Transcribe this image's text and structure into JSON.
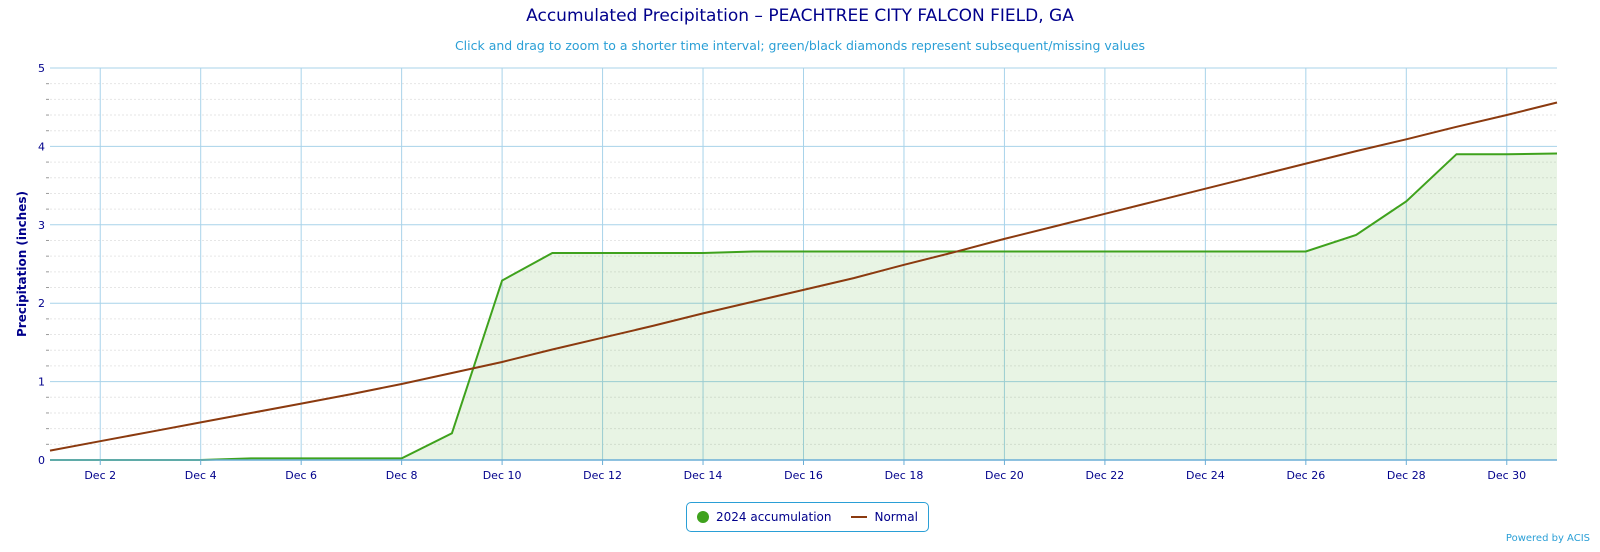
{
  "title": "Accumulated Precipitation – PEACHTREE CITY FALCON FIELD, GA",
  "subtitle": "Click and drag to zoom to a shorter time interval; green/black diamonds represent subsequent/missing values",
  "credit": "Powered by ACIS",
  "colors": {
    "accumulation": "#3fa21d",
    "normal": "#8b3a0f",
    "title": "#00008b",
    "accent": "#2a9fd6"
  },
  "chart_data": {
    "type": "line",
    "ylabel": "Precipitation (inches)",
    "ylim": [
      0,
      5
    ],
    "yticks": [
      0,
      1,
      2,
      3,
      4,
      5
    ],
    "xlim": [
      1,
      31
    ],
    "xticks": [
      {
        "day": 2,
        "label": "Dec 2"
      },
      {
        "day": 4,
        "label": "Dec 4"
      },
      {
        "day": 6,
        "label": "Dec 6"
      },
      {
        "day": 8,
        "label": "Dec 8"
      },
      {
        "day": 10,
        "label": "Dec 10"
      },
      {
        "day": 12,
        "label": "Dec 12"
      },
      {
        "day": 14,
        "label": "Dec 14"
      },
      {
        "day": 16,
        "label": "Dec 16"
      },
      {
        "day": 18,
        "label": "Dec 18"
      },
      {
        "day": 20,
        "label": "Dec 20"
      },
      {
        "day": 22,
        "label": "Dec 22"
      },
      {
        "day": 24,
        "label": "Dec 24"
      },
      {
        "day": 26,
        "label": "Dec 26"
      },
      {
        "day": 28,
        "label": "Dec 28"
      },
      {
        "day": 30,
        "label": "Dec 30"
      }
    ],
    "x": [
      1,
      2,
      3,
      4,
      5,
      6,
      7,
      8,
      9,
      10,
      11,
      12,
      13,
      14,
      15,
      16,
      17,
      18,
      19,
      20,
      21,
      22,
      23,
      24,
      25,
      26,
      27,
      28,
      29,
      30,
      31
    ],
    "series": [
      {
        "name": "2024 accumulation",
        "style": "area",
        "values": [
          0,
          0,
          0,
          0,
          0.02,
          0.02,
          0.02,
          0.02,
          0.34,
          2.29,
          2.64,
          2.64,
          2.64,
          2.64,
          2.66,
          2.66,
          2.66,
          2.66,
          2.66,
          2.66,
          2.66,
          2.66,
          2.66,
          2.66,
          2.66,
          2.66,
          2.87,
          3.3,
          3.9,
          3.9,
          3.91
        ]
      },
      {
        "name": "Normal",
        "style": "line",
        "values": [
          0.12,
          0.24,
          0.36,
          0.48,
          0.6,
          0.72,
          0.84,
          0.97,
          1.11,
          1.25,
          1.41,
          1.56,
          1.71,
          1.87,
          2.02,
          2.17,
          2.32,
          2.49,
          2.65,
          2.82,
          2.98,
          3.14,
          3.3,
          3.46,
          3.62,
          3.78,
          3.94,
          4.09,
          4.25,
          4.4,
          4.56
        ]
      }
    ],
    "grid": true,
    "legend": "bottom-center"
  }
}
